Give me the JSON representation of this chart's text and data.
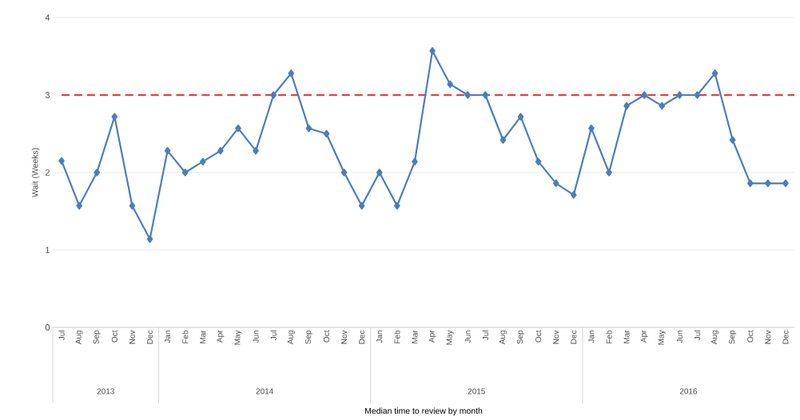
{
  "chart_data": {
    "type": "line",
    "ylabel": "Wait (Weeks)",
    "categories": [
      "Jul",
      "Aug",
      "Sep",
      "Oct",
      "Nov",
      "Dec",
      "Jan",
      "Feb",
      "Mar",
      "Apr",
      "May",
      "Jun",
      "Jul",
      "Aug",
      "Sep",
      "Oct",
      "Nov",
      "Dec",
      "Jan",
      "Feb",
      "Mar",
      "Apr",
      "May",
      "Jun",
      "Jul",
      "Aug",
      "Sep",
      "Oct",
      "Nov",
      "Dec",
      "Jan",
      "Feb",
      "Mar",
      "Apr",
      "May",
      "Jun",
      "Jul",
      "Aug",
      "Sep",
      "Oct",
      "Nov",
      "Dec"
    ],
    "series": [
      {
        "color": "#4a7ebb",
        "values": [
          2.15,
          1.57,
          2.0,
          2.72,
          1.57,
          1.14,
          2.28,
          2.0,
          2.14,
          2.28,
          2.57,
          2.28,
          3.0,
          3.28,
          2.57,
          2.5,
          2.0,
          1.57,
          2.0,
          1.57,
          2.14,
          3.57,
          3.14,
          3.0,
          3.0,
          2.42,
          2.72,
          2.14,
          1.86,
          1.71,
          2.57,
          2.0,
          2.86,
          3.0,
          2.86,
          3.0,
          3.0,
          3.28,
          2.42,
          1.86,
          1.86,
          1.86
        ]
      }
    ],
    "ylim": [
      0,
      4
    ],
    "yticks": [
      0,
      1,
      2,
      3,
      4
    ],
    "grid": "y",
    "marker": "diamond",
    "line_style": "solid",
    "ref_lines": [
      {
        "axis": "y",
        "value": 3,
        "color": "#e8383a",
        "line_style": "dashed"
      }
    ],
    "annotations": [
      "2013",
      "2014",
      "2015",
      "2016",
      "Median time to review by month"
    ]
  }
}
